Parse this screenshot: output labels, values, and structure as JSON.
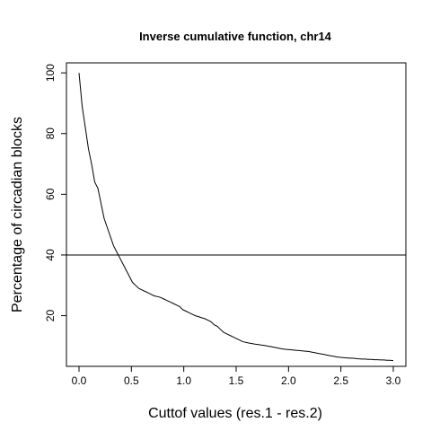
{
  "chart_data": {
    "type": "line",
    "title": "Inverse cumulative function, chr14",
    "xlabel": "Cuttof values (res.1 - res.2)",
    "ylabel": "Percentage of circadian blocks",
    "xlim": [
      -0.12,
      3.12
    ],
    "ylim": [
      3.3,
      103.3
    ],
    "x_ticks": [
      0.0,
      0.5,
      1.0,
      1.5,
      2.0,
      2.5,
      3.0
    ],
    "x_tick_labels": [
      "0.0",
      "0.5",
      "1.0",
      "1.5",
      "2.0",
      "2.5",
      "3.0"
    ],
    "y_ticks": [
      20,
      40,
      60,
      80,
      100
    ],
    "y_tick_labels": [
      "20",
      "40",
      "60",
      "80",
      "100"
    ],
    "grid": false,
    "legend": "none",
    "series": [
      {
        "x": [
          0.0,
          0.03,
          0.06,
          0.09,
          0.12,
          0.15,
          0.18,
          0.21,
          0.24,
          0.27,
          0.3,
          0.33,
          0.36,
          0.39,
          0.42,
          0.45,
          0.48,
          0.51,
          0.54,
          0.57,
          0.6,
          0.63,
          0.66,
          0.69,
          0.72,
          0.75,
          0.78,
          0.81,
          0.84,
          0.87,
          0.9,
          0.93,
          0.96,
          0.99,
          1.02,
          1.05,
          1.08,
          1.11,
          1.14,
          1.17,
          1.2,
          1.23,
          1.26,
          1.29,
          1.32,
          1.35,
          1.38,
          1.41,
          1.44,
          1.47,
          1.5,
          1.53,
          1.56,
          1.59,
          1.62,
          1.65,
          1.68,
          1.71,
          1.74,
          1.77,
          1.8,
          1.83,
          1.86,
          1.89,
          1.92,
          1.95,
          1.98,
          2.01,
          2.04,
          2.07,
          2.1,
          2.13,
          2.16,
          2.19,
          2.22,
          2.25,
          2.28,
          2.31,
          2.34,
          2.37,
          2.4,
          2.43,
          2.46,
          2.49,
          2.52,
          2.55,
          2.58,
          2.61,
          2.64,
          2.67,
          2.7,
          2.73,
          2.76,
          2.79,
          2.82,
          2.85,
          2.88,
          2.91,
          2.94,
          2.97,
          3.0
        ],
        "y": [
          100,
          89,
          82,
          75,
          70,
          64,
          62,
          57,
          52,
          49,
          46,
          43,
          41,
          39,
          37,
          35,
          33,
          31,
          30,
          29,
          28.5,
          28,
          27.5,
          27,
          26.5,
          26.3,
          26,
          25.5,
          25,
          24.5,
          24,
          23.5,
          23,
          22,
          21.5,
          21,
          20.5,
          20,
          19.7,
          19.3,
          19,
          18.5,
          18,
          17,
          16.5,
          15.5,
          14.5,
          14,
          13.5,
          13,
          12.5,
          12,
          11.5,
          11.2,
          11,
          10.8,
          10.6,
          10.5,
          10.3,
          10.2,
          10,
          9.8,
          9.6,
          9.4,
          9.2,
          9,
          8.9,
          8.8,
          8.7,
          8.6,
          8.5,
          8.4,
          8.3,
          8.2,
          8,
          7.8,
          7.6,
          7.4,
          7.2,
          7,
          6.8,
          6.6,
          6.4,
          6.3,
          6.2,
          6.1,
          6,
          6,
          5.9,
          5.8,
          5.7,
          5.7,
          5.6,
          5.6,
          5.5,
          5.5,
          5.4,
          5.4,
          5.3,
          5.3,
          5.2
        ]
      }
    ],
    "hline": 40
  }
}
